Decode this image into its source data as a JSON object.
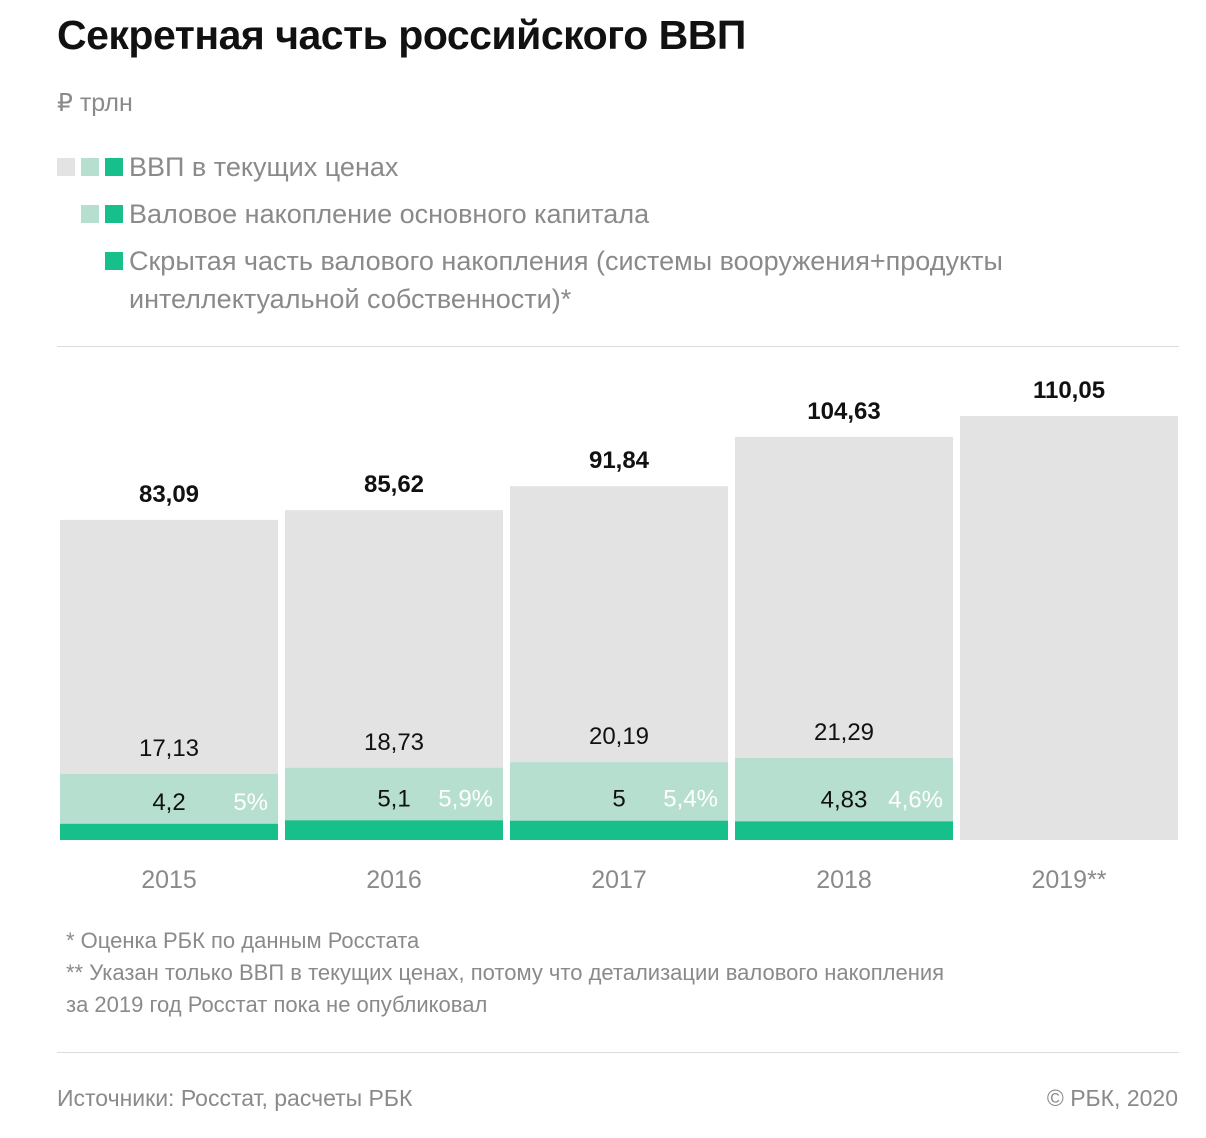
{
  "header": {
    "title": "Секретная часть российского ВВП",
    "unit": "₽ трлн"
  },
  "legend": [
    {
      "label": "ВВП в текущих ценах"
    },
    {
      "label": "Валовое накопление основного капитала"
    },
    {
      "label": "Скрытая часть валового накопления (системы вооружения+продукты интеллектуальной собственности)*"
    }
  ],
  "colors": {
    "gdp": "#e3e3e3",
    "capital": "#b7dfd0",
    "hidden": "#17c08a",
    "percent_text": "#ffffff"
  },
  "chart_data": {
    "type": "bar",
    "categories": [
      "2015",
      "2016",
      "2017",
      "2018",
      "2019**"
    ],
    "series": [
      {
        "name": "ВВП в текущих ценах",
        "values": [
          83.09,
          85.62,
          91.84,
          104.63,
          110.05
        ],
        "labels": [
          "83,09",
          "85,62",
          "91,84",
          "104,63",
          "110,05"
        ]
      },
      {
        "name": "Валовое накопление основного капитала",
        "values": [
          17.13,
          18.73,
          20.19,
          21.29,
          null
        ],
        "labels": [
          "17,13",
          "18,73",
          "20,19",
          "21,29",
          ""
        ]
      },
      {
        "name": "Скрытая часть валового накопления (системы вооружения+продукты интеллектуальной собственности)*",
        "values": [
          4.2,
          5.1,
          5,
          4.83,
          null
        ],
        "labels": [
          "4,2",
          "5,1",
          "5",
          "4,83",
          ""
        ]
      }
    ],
    "percent_labels": [
      "5%",
      "5,9%",
      "5,4%",
      "4,6%",
      ""
    ],
    "ylim": [
      0,
      110.05
    ]
  },
  "footnotes": {
    "note1": "* Оценка РБК по данным Росстата",
    "note2_line1": "** Указан только ВВП в текущих ценах, потому что детализации валового накопления",
    "note2_line2": "за 2019 год Росстат пока не опубликовал"
  },
  "footer": {
    "source": "Источники: Росстат, расчеты РБК",
    "copyright": "© РБК, 2020"
  }
}
